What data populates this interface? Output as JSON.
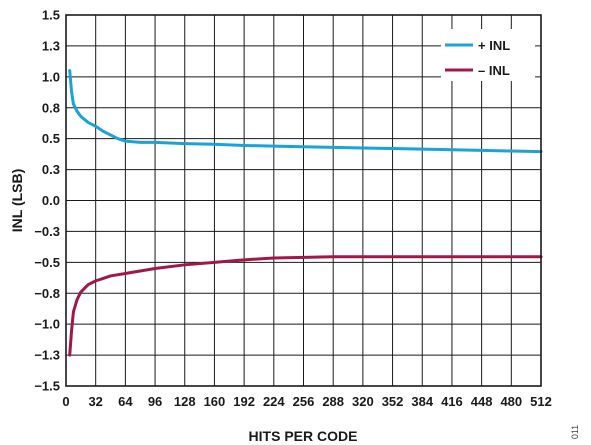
{
  "figure_id": "011",
  "chart_data": {
    "type": "line",
    "xlabel": "HITS PER CODE",
    "ylabel": "INL (LSB)",
    "xlim": [
      0,
      512
    ],
    "ylim": [
      -1.5,
      1.5
    ],
    "x_ticks": [
      0,
      32,
      64,
      96,
      128,
      160,
      192,
      224,
      256,
      288,
      320,
      352,
      384,
      416,
      448,
      480,
      512
    ],
    "y_ticks": [
      1.5,
      1.25,
      1.0,
      0.75,
      0.5,
      0.25,
      0.0,
      -0.25,
      -0.5,
      -0.75,
      -1.0,
      -1.25,
      -1.5
    ],
    "y_tick_labels": [
      "1.5",
      "1.3",
      "1.0",
      "0.8",
      "0.5",
      "0.3",
      "0.0",
      "−0.3",
      "−0.5",
      "−0.8",
      "−1.0",
      "−1.3",
      "−1.5"
    ],
    "grid": true,
    "legend_position": "top-right",
    "series": [
      {
        "name": "+ INL",
        "color": "#1aa3d9",
        "x": [
          4,
          6,
          8,
          12,
          16,
          24,
          32,
          40,
          48,
          56,
          64,
          80,
          96,
          128,
          160,
          192,
          224,
          256,
          288,
          320,
          352,
          384,
          416,
          448,
          480,
          512
        ],
        "y": [
          1.05,
          0.88,
          0.78,
          0.72,
          0.68,
          0.63,
          0.6,
          0.56,
          0.53,
          0.5,
          0.48,
          0.47,
          0.47,
          0.46,
          0.455,
          0.445,
          0.44,
          0.435,
          0.43,
          0.425,
          0.42,
          0.415,
          0.41,
          0.405,
          0.4,
          0.395
        ]
      },
      {
        "name": "– INL",
        "color": "#a01848",
        "x": [
          4,
          6,
          8,
          12,
          16,
          24,
          32,
          40,
          48,
          56,
          64,
          80,
          96,
          128,
          160,
          192,
          224,
          256,
          288,
          320,
          352,
          384,
          416,
          448,
          480,
          512
        ],
        "y": [
          -1.25,
          -1.05,
          -0.9,
          -0.8,
          -0.74,
          -0.68,
          -0.65,
          -0.63,
          -0.61,
          -0.6,
          -0.59,
          -0.57,
          -0.55,
          -0.52,
          -0.5,
          -0.48,
          -0.465,
          -0.46,
          -0.455,
          -0.455,
          -0.455,
          -0.455,
          -0.455,
          -0.455,
          -0.455,
          -0.455
        ]
      }
    ]
  }
}
